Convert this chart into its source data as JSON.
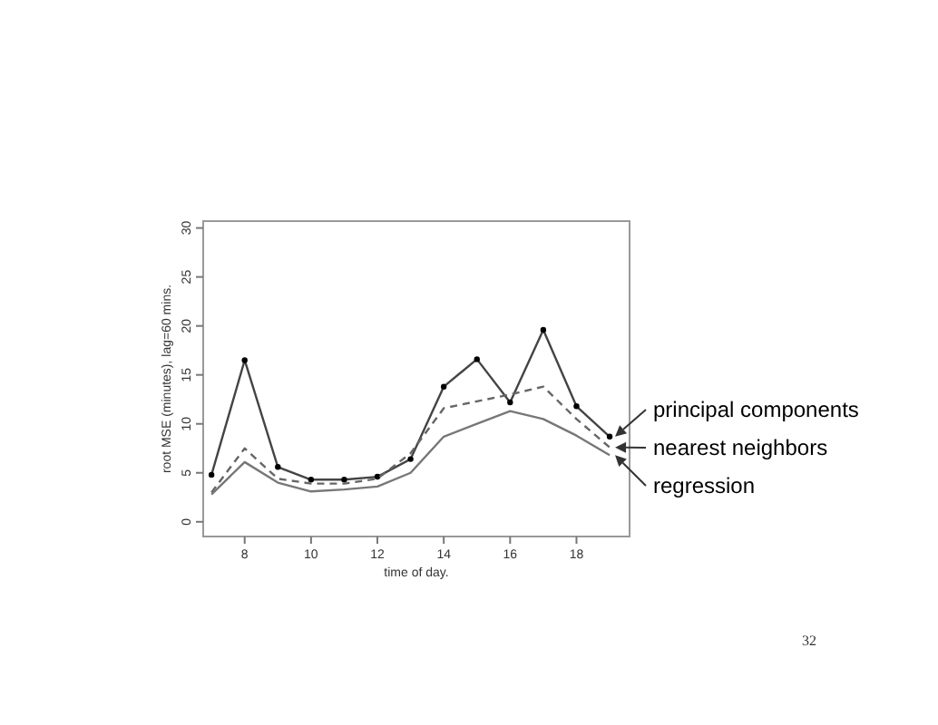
{
  "chart_data": {
    "type": "line",
    "xlabel": "time of day.",
    "ylabel": "root MSE (minutes), lag=60 mins.",
    "x": [
      7,
      8,
      9,
      10,
      11,
      12,
      13,
      14,
      15,
      16,
      17,
      18,
      19
    ],
    "series": [
      {
        "name": "principal components",
        "color": "#444444",
        "marker": "circle",
        "line_style": "solid",
        "values": [
          4.8,
          16.5,
          5.6,
          4.3,
          4.3,
          4.6,
          6.4,
          13.8,
          16.6,
          12.2,
          19.6,
          11.8,
          8.7
        ]
      },
      {
        "name": "nearest neighbors",
        "color": "#666666",
        "marker": "none",
        "line_style": "dashed",
        "values": [
          3.0,
          7.5,
          4.4,
          3.9,
          3.9,
          4.4,
          7.0,
          11.6,
          12.3,
          13.0,
          13.8,
          10.5,
          7.6
        ]
      },
      {
        "name": "regression",
        "color": "#777777",
        "marker": "none",
        "line_style": "solid",
        "values": [
          2.8,
          6.1,
          4.0,
          3.1,
          3.3,
          3.6,
          5.0,
          8.7,
          10.0,
          11.3,
          10.5,
          8.8,
          6.8
        ]
      }
    ],
    "xlim": [
      6.75,
      19.6
    ],
    "ylim": [
      -1.5,
      30.7
    ],
    "xticks": [
      8,
      10,
      12,
      14,
      16,
      18
    ],
    "yticks": [
      0,
      5,
      10,
      15,
      20,
      25,
      30
    ],
    "grid": false,
    "legend": "right",
    "annotations": [
      "32"
    ]
  }
}
